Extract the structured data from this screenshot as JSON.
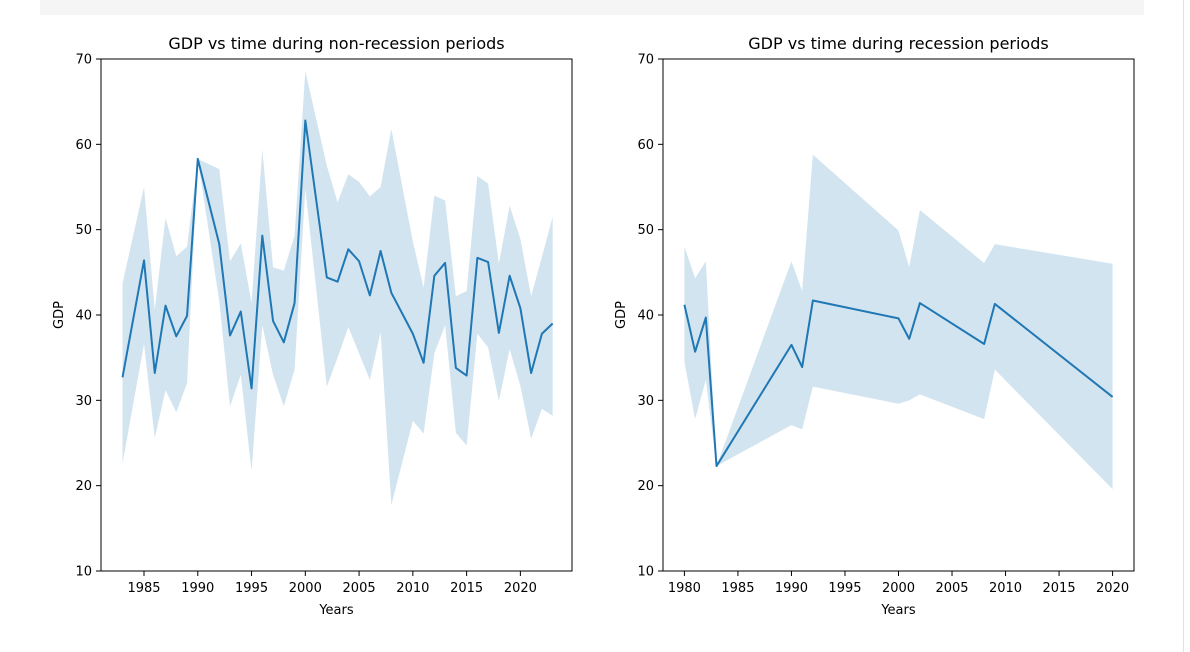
{
  "chart_data": [
    {
      "type": "line",
      "title": "GDP vs time during non-recession periods",
      "xlabel": "Years",
      "ylabel": "GDP",
      "xlim": [
        1981.0,
        2024.8
      ],
      "ylim": [
        10,
        70
      ],
      "xticks": [
        1985,
        1990,
        1995,
        2000,
        2005,
        2010,
        2015,
        2020
      ],
      "yticks": [
        10,
        20,
        30,
        40,
        50,
        60,
        70
      ],
      "grid": false,
      "colors": {
        "line": "#1f77b4",
        "band": "#1f77b4"
      },
      "series": [
        {
          "x": [
            1983,
            1985,
            1986,
            1987,
            1988,
            1989,
            1990,
            1992,
            1993,
            1994,
            1995,
            1996,
            1997,
            1998,
            1999,
            2000,
            2002,
            2003,
            2004,
            2005,
            2006,
            2007,
            2008,
            2010,
            2011,
            2012,
            2013,
            2014,
            2015,
            2016,
            2017,
            2018,
            2019,
            2020,
            2021,
            2022,
            2023
          ],
          "y": [
            32.7,
            46.4,
            33.2,
            41.1,
            37.5,
            39.9,
            58.3,
            48.3,
            37.6,
            40.4,
            31.4,
            49.3,
            39.3,
            36.8,
            41.4,
            62.8,
            44.4,
            43.9,
            47.7,
            46.3,
            42.3,
            47.5,
            42.6,
            37.8,
            34.4,
            44.6,
            46.1,
            33.8,
            32.9,
            46.7,
            46.2,
            37.9,
            44.6,
            40.8,
            33.2,
            37.8,
            39.0
          ],
          "band_low": [
            22.6,
            36.6,
            25.6,
            31.2,
            28.6,
            32.0,
            58.3,
            41.6,
            29.3,
            33.0,
            21.7,
            38.8,
            33.0,
            29.3,
            33.6,
            54.8,
            31.6,
            35.0,
            38.6,
            35.5,
            32.4,
            38.0,
            17.7,
            27.6,
            26.1,
            35.5,
            38.8,
            26.2,
            24.7,
            37.8,
            36.2,
            29.9,
            36.0,
            31.7,
            25.5,
            29.0,
            28.2
          ],
          "band_high": [
            43.7,
            55.0,
            40.6,
            51.4,
            46.9,
            48.0,
            58.3,
            57.1,
            46.3,
            48.4,
            41.4,
            59.4,
            45.6,
            45.2,
            49.3,
            68.6,
            57.5,
            53.2,
            56.5,
            55.6,
            53.9,
            55.0,
            61.8,
            48.6,
            43.2,
            54.0,
            53.4,
            42.2,
            42.8,
            56.3,
            55.4,
            46.0,
            52.8,
            48.9,
            42.2,
            46.8,
            51.5
          ]
        }
      ]
    },
    {
      "type": "line",
      "title": "GDP vs time during recession periods",
      "xlabel": "Years",
      "ylabel": "GDP",
      "xlim": [
        1978.0,
        2022.0
      ],
      "ylim": [
        10,
        70
      ],
      "xticks": [
        1980,
        1985,
        1990,
        1995,
        2000,
        2005,
        2010,
        2015,
        2020
      ],
      "yticks": [
        10,
        20,
        30,
        40,
        50,
        60,
        70
      ],
      "grid": false,
      "colors": {
        "line": "#1f77b4",
        "band": "#1f77b4"
      },
      "series": [
        {
          "x": [
            1980,
            1981,
            1982,
            1983,
            1990,
            1991,
            1992,
            2000,
            2001,
            2002,
            2008,
            2009,
            2020
          ],
          "y": [
            41.2,
            35.7,
            39.7,
            22.3,
            36.5,
            33.9,
            41.7,
            39.6,
            37.2,
            41.4,
            36.6,
            41.3,
            30.4
          ],
          "band_low": [
            34.5,
            27.8,
            32.4,
            22.3,
            27.1,
            26.6,
            31.6,
            29.6,
            30.0,
            30.7,
            27.8,
            33.6,
            19.6
          ],
          "band_high": [
            48.0,
            44.3,
            46.3,
            22.3,
            46.3,
            42.8,
            58.8,
            49.9,
            45.6,
            52.3,
            46.1,
            48.3,
            46.0
          ]
        }
      ]
    }
  ]
}
